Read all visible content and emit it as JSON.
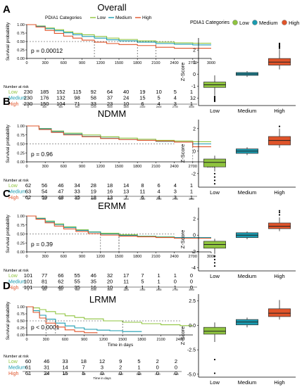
{
  "colors": {
    "low": "#8fc43f",
    "medium": "#1a9bb0",
    "high": "#e0542a",
    "axis": "#000000",
    "grid": "#333333"
  },
  "chart_data": [
    {
      "panel": "A",
      "type": "line",
      "title": "Overall",
      "ylabel": "Survival probability",
      "legend_title": "PDIA1 Categories",
      "legend": [
        "Low",
        "Medium",
        "High"
      ],
      "xlim": [
        0,
        3000
      ],
      "ylim": [
        0,
        1
      ],
      "x_ticks": [
        "0",
        "300",
        "600",
        "900",
        "1200",
        "1500",
        "1800",
        "2100",
        "2400",
        "2700",
        "3000"
      ],
      "y_ticks": [
        "0.00",
        "0.25",
        "0.50",
        "0.75",
        "1.00"
      ],
      "pvalue": "p = 0.00012",
      "series": [
        {
          "name": "Low",
          "x": [
            0,
            150,
            300,
            450,
            600,
            750,
            900,
            1100,
            1300,
            1500,
            1800,
            2100,
            2400,
            2700,
            3000
          ],
          "y": [
            1,
            0.96,
            0.9,
            0.85,
            0.79,
            0.74,
            0.7,
            0.65,
            0.6,
            0.56,
            0.52,
            0.48,
            0.46,
            0.45,
            0.45
          ]
        },
        {
          "name": "Medium",
          "x": [
            0,
            150,
            300,
            450,
            600,
            750,
            900,
            1100,
            1300,
            1500,
            1800,
            2100,
            2400,
            2700,
            3000
          ],
          "y": [
            1,
            0.95,
            0.88,
            0.82,
            0.76,
            0.7,
            0.65,
            0.6,
            0.55,
            0.52,
            0.48,
            0.44,
            0.42,
            0.4,
            0.4
          ]
        },
        {
          "name": "High",
          "x": [
            0,
            150,
            300,
            450,
            600,
            750,
            900,
            1100,
            1300,
            1500,
            1800,
            2100,
            2400,
            2700,
            3000
          ],
          "y": [
            1,
            0.93,
            0.83,
            0.74,
            0.66,
            0.6,
            0.54,
            0.48,
            0.44,
            0.41,
            0.38,
            0.33,
            0.3,
            0.3,
            0.3
          ]
        }
      ],
      "risk_title": "Number at risk",
      "risk_labels": [
        "Low",
        "Medium",
        "High"
      ],
      "risk_table": [
        [
          "230",
          "185",
          "152",
          "115",
          "92",
          "64",
          "40",
          "19",
          "10",
          "5",
          "1"
        ],
        [
          "230",
          "176",
          "132",
          "98",
          "58",
          "37",
          "24",
          "15",
          "5",
          "4",
          "1"
        ],
        [
          "230",
          "150",
          "104",
          "71",
          "33",
          "23",
          "10",
          "6",
          "4",
          "3",
          "1"
        ]
      ],
      "risk_ticks": [
        "0",
        "300",
        "600",
        "900",
        "1200",
        "1500",
        "1800",
        "2100",
        "2400",
        "2700",
        "3000"
      ]
    },
    {
      "panel": "B",
      "type": "line",
      "title": "NDMM",
      "ylabel": "Survival probability",
      "xlim": [
        0,
        3000
      ],
      "ylim": [
        0,
        1
      ],
      "x_ticks": [
        "0",
        "300",
        "600",
        "900",
        "1200",
        "1500",
        "1800",
        "2100",
        "2400",
        "2700",
        "3000"
      ],
      "y_ticks": [
        "0.00",
        "0.25",
        "0.50",
        "0.75",
        "1.00"
      ],
      "pvalue": "p = 0.96",
      "series": [
        {
          "name": "Low",
          "x": [
            0,
            200,
            400,
            600,
            900,
            1200,
            1500,
            1800,
            2100,
            2400,
            2700,
            3000
          ],
          "y": [
            1,
            0.93,
            0.86,
            0.8,
            0.75,
            0.7,
            0.66,
            0.63,
            0.6,
            0.58,
            0.56,
            0.56
          ]
        },
        {
          "name": "Medium",
          "x": [
            0,
            200,
            400,
            600,
            900,
            1200,
            1500,
            1800,
            2100,
            2400,
            2700,
            3000
          ],
          "y": [
            1,
            0.92,
            0.84,
            0.77,
            0.71,
            0.66,
            0.62,
            0.6,
            0.57,
            0.55,
            0.5,
            0.5
          ]
        },
        {
          "name": "High",
          "x": [
            0,
            200,
            400,
            600,
            900,
            1200,
            1500,
            1800,
            2100,
            2400,
            2700,
            3000
          ],
          "y": [
            1,
            0.9,
            0.82,
            0.75,
            0.7,
            0.65,
            0.62,
            0.6,
            0.58,
            0.55,
            0.42,
            0.42
          ]
        }
      ],
      "risk_title": "Number at risk",
      "risk_labels": [
        "Low",
        "Medium",
        "High"
      ],
      "risk_table": [
        [
          "62",
          "56",
          "46",
          "34",
          "28",
          "18",
          "14",
          "8",
          "6",
          "4",
          "1"
        ],
        [
          "63",
          "54",
          "47",
          "33",
          "19",
          "16",
          "13",
          "11",
          "4",
          "3",
          "1"
        ],
        [
          "62",
          "59",
          "48",
          "35",
          "18",
          "13",
          "7",
          "6",
          "4",
          "3",
          "1"
        ]
      ],
      "risk_ticks": [
        "0",
        "300",
        "600",
        "900",
        "1200",
        "1500",
        "1800",
        "2100",
        "2400",
        "2700",
        "3000"
      ]
    },
    {
      "panel": "C",
      "type": "line",
      "title": "ERMM",
      "ylabel": "Survival probability",
      "xlim": [
        0,
        3000
      ],
      "ylim": [
        0,
        1
      ],
      "x_ticks": [
        "0",
        "300",
        "600",
        "900",
        "1200",
        "1500",
        "1800",
        "2100",
        "2400",
        "2700",
        "3000"
      ],
      "y_ticks": [
        "0.00",
        "0.25",
        "0.50",
        "0.75",
        "1.00"
      ],
      "pvalue": "p = 0.39",
      "series": [
        {
          "name": "Low",
          "x": [
            0,
            150,
            300,
            450,
            600,
            800,
            1000,
            1200,
            1500,
            1800,
            2100,
            2400,
            3000
          ],
          "y": [
            1,
            0.94,
            0.86,
            0.78,
            0.7,
            0.62,
            0.56,
            0.52,
            0.48,
            0.44,
            0.42,
            0.4,
            0.4
          ]
        },
        {
          "name": "Medium",
          "x": [
            0,
            150,
            300,
            450,
            600,
            800,
            1000,
            1200,
            1500,
            1800,
            2100,
            2400,
            3000
          ],
          "y": [
            1,
            0.93,
            0.84,
            0.76,
            0.68,
            0.6,
            0.55,
            0.5,
            0.46,
            0.43,
            0.41,
            0.4,
            0.4
          ]
        },
        {
          "name": "High",
          "x": [
            0,
            150,
            300,
            450,
            600,
            800,
            1000,
            1200,
            1500,
            1800,
            2100,
            2400,
            3000
          ],
          "y": [
            1,
            0.91,
            0.81,
            0.72,
            0.64,
            0.57,
            0.51,
            0.47,
            0.44,
            0.42,
            0.4,
            0.38,
            0.38
          ]
        }
      ],
      "risk_title": "Number at risk",
      "risk_labels": [
        "Low",
        "Medium",
        "High"
      ],
      "risk_table": [
        [
          "101",
          "77",
          "66",
          "55",
          "46",
          "32",
          "17",
          "7",
          "1",
          "1",
          "0"
        ],
        [
          "101",
          "81",
          "62",
          "55",
          "35",
          "20",
          "11",
          "5",
          "1",
          "0",
          "0"
        ],
        [
          "101",
          "68",
          "46",
          "35",
          "16",
          "10",
          "4",
          "1",
          "1",
          "1",
          "0"
        ]
      ],
      "risk_ticks": [
        "0",
        "300",
        "600",
        "900",
        "1200",
        "1500",
        "1800",
        "2100",
        "2400",
        "2700",
        "3000"
      ]
    },
    {
      "panel": "D",
      "type": "line",
      "title": "LRMM",
      "ylabel": "Survival probability",
      "xlabel": "Time in days",
      "xlim": [
        0,
        2600
      ],
      "ylim": [
        0,
        1
      ],
      "x_ticks": [
        "0",
        "300",
        "600",
        "900",
        "1200",
        "1500",
        "1800",
        "2100",
        "2400"
      ],
      "y_ticks": [
        "0.00",
        "0.25",
        "0.50",
        "0.75",
        "1.00"
      ],
      "pvalue": "p < 0.0001",
      "series": [
        {
          "name": "Low",
          "x": [
            0,
            100,
            200,
            300,
            450,
            600,
            750,
            900,
            1200,
            1500,
            1800,
            2100,
            2400,
            2600
          ],
          "y": [
            1,
            0.96,
            0.9,
            0.83,
            0.75,
            0.68,
            0.62,
            0.57,
            0.5,
            0.45,
            0.4,
            0.36,
            0.33,
            0.33
          ]
        },
        {
          "name": "Medium",
          "x": [
            0,
            100,
            200,
            300,
            450,
            600,
            750,
            900,
            1100,
            1300,
            1500,
            1800
          ],
          "y": [
            1,
            0.86,
            0.7,
            0.56,
            0.42,
            0.32,
            0.25,
            0.2,
            0.17,
            0.15,
            0.12,
            0.12
          ]
        },
        {
          "name": "High",
          "x": [
            0,
            100,
            200,
            300,
            450,
            600,
            750,
            900,
            1100
          ],
          "y": [
            1,
            0.8,
            0.6,
            0.42,
            0.28,
            0.18,
            0.12,
            0.08,
            0.06
          ]
        }
      ],
      "risk_title": "Number at risk",
      "risk_labels": [
        "Low",
        "Medium",
        "High"
      ],
      "risk_table": [
        [
          "60",
          "46",
          "33",
          "18",
          "12",
          "9",
          "5",
          "2",
          "2"
        ],
        [
          "61",
          "31",
          "14",
          "7",
          "3",
          "2",
          "1",
          "0",
          "0"
        ],
        [
          "61",
          "24",
          "15",
          "5",
          "0",
          "0",
          "0",
          "0",
          "0"
        ]
      ],
      "risk_ticks": [
        "0",
        "300",
        "600",
        "900",
        "1200",
        "1500",
        "1800",
        "2100",
        "2400"
      ],
      "risk_xlabel": "Time in days"
    },
    {
      "panel": "A",
      "type": "box",
      "ylabel": "Z-Score",
      "legend_title": "PDIA1 Categories",
      "legend": [
        "Low",
        "Medium",
        "High"
      ],
      "categories": [
        "Low",
        "Medium",
        "High"
      ],
      "ylim": [
        -2.6,
        3.0
      ],
      "y_ticks": [
        -2,
        -1,
        0,
        1,
        2
      ],
      "boxes": [
        {
          "q1": -1.1,
          "median": -0.88,
          "q3": -0.65,
          "whisker_low": -1.75,
          "whisker_high": -0.1,
          "outliers": [
            -1.85,
            -1.95,
            -2.05,
            -2.15,
            -2.25
          ]
        },
        {
          "q1": -0.1,
          "median": 0.02,
          "q3": 0.14,
          "whisker_low": -0.22,
          "whisker_high": 0.25,
          "outliers": []
        },
        {
          "q1": 0.75,
          "median": 1.0,
          "q3": 1.3,
          "whisker_low": 0.4,
          "whisker_high": 2.05,
          "outliers": [
            2.15,
            2.25,
            2.35,
            2.45,
            2.55
          ]
        }
      ]
    },
    {
      "panel": "B",
      "type": "box",
      "ylabel": "Z-Score",
      "categories": [
        "Low",
        "Medium",
        "High"
      ],
      "ylim": [
        -3.2,
        2.8
      ],
      "y_ticks": [
        -2,
        0,
        2
      ],
      "boxes": [
        {
          "q1": -1.4,
          "median": -1.0,
          "q3": -0.7,
          "whisker_low": -1.8,
          "whisker_high": -0.4,
          "outliers": [
            -2.0,
            -2.3,
            -2.6,
            -2.9
          ]
        },
        {
          "q1": -0.2,
          "median": 0.0,
          "q3": 0.2,
          "whisker_low": -0.35,
          "whisker_high": 0.35,
          "outliers": []
        },
        {
          "q1": 0.55,
          "median": 0.95,
          "q3": 1.3,
          "whisker_low": 0.3,
          "whisker_high": 2.0,
          "outliers": [
            2.2
          ]
        }
      ]
    },
    {
      "panel": "C",
      "type": "box",
      "ylabel": "Z-Score",
      "categories": [
        "Low",
        "Medium",
        "High"
      ],
      "ylim": [
        -4.4,
        3.4
      ],
      "y_ticks": [
        -4,
        -2,
        0,
        2
      ],
      "boxes": [
        {
          "q1": -1.6,
          "median": -1.15,
          "q3": -0.75,
          "whisker_low": -2.3,
          "whisker_high": -0.45,
          "outliers": [
            -2.6,
            -3.0,
            -3.4,
            -3.8
          ]
        },
        {
          "q1": -0.3,
          "median": 0.0,
          "q3": 0.3,
          "whisker_low": -0.5,
          "whisker_high": 0.45,
          "outliers": []
        },
        {
          "q1": 0.8,
          "median": 1.1,
          "q3": 1.5,
          "whisker_low": 0.5,
          "whisker_high": 2.2,
          "outliers": [
            2.5,
            2.8,
            3.0
          ]
        }
      ]
    },
    {
      "panel": "D",
      "type": "box",
      "ylabel": "Z-Score",
      "xlabel": "PDIA1 Categories",
      "categories": [
        "Low",
        "Medium",
        "High"
      ],
      "ylim": [
        -5.3,
        3.2
      ],
      "y_ticks": [
        "-5.0",
        "-2.5",
        "0.0",
        "2.5"
      ],
      "y_tick_values": [
        -5,
        -2.5,
        0,
        2.5
      ],
      "boxes": [
        {
          "q1": -0.9,
          "median": -0.6,
          "q3": -0.2,
          "whisker_low": -1.7,
          "whisker_high": 0.3,
          "outliers": [
            -3.5,
            -4.9
          ]
        },
        {
          "q1": 0.05,
          "median": 0.35,
          "q3": 0.6,
          "whisker_low": -0.2,
          "whisker_high": 0.8,
          "outliers": []
        },
        {
          "q1": 0.9,
          "median": 1.25,
          "q3": 1.7,
          "whisker_low": 0.6,
          "whisker_high": 2.6,
          "outliers": []
        }
      ]
    }
  ]
}
